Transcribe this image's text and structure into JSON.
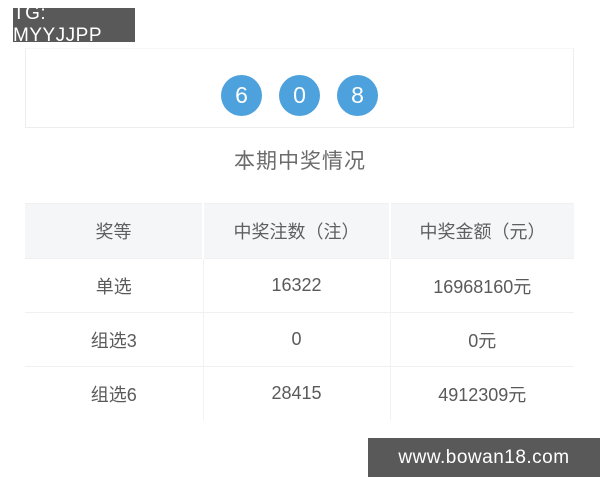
{
  "badges": {
    "tg": "TG: MYYJJPP",
    "site": "www.bowan18.com"
  },
  "draw": {
    "numbers": [
      "6",
      "0",
      "8"
    ]
  },
  "section_title": "本期中奖情况",
  "table": {
    "headers": [
      "奖等",
      "中奖注数（注）",
      "中奖金额（元）"
    ],
    "rows": [
      [
        "单选",
        "16322",
        "16968160元"
      ],
      [
        "组选3",
        "0",
        "0元"
      ],
      [
        "组选6",
        "28415",
        "4912309元"
      ]
    ]
  },
  "colors": {
    "ball_blue": "#4da1dc",
    "badge_gray": "#595959",
    "table_header_bg": "#f5f6f7",
    "border_light": "#ededed",
    "text_gray": "#5a5a5a"
  }
}
